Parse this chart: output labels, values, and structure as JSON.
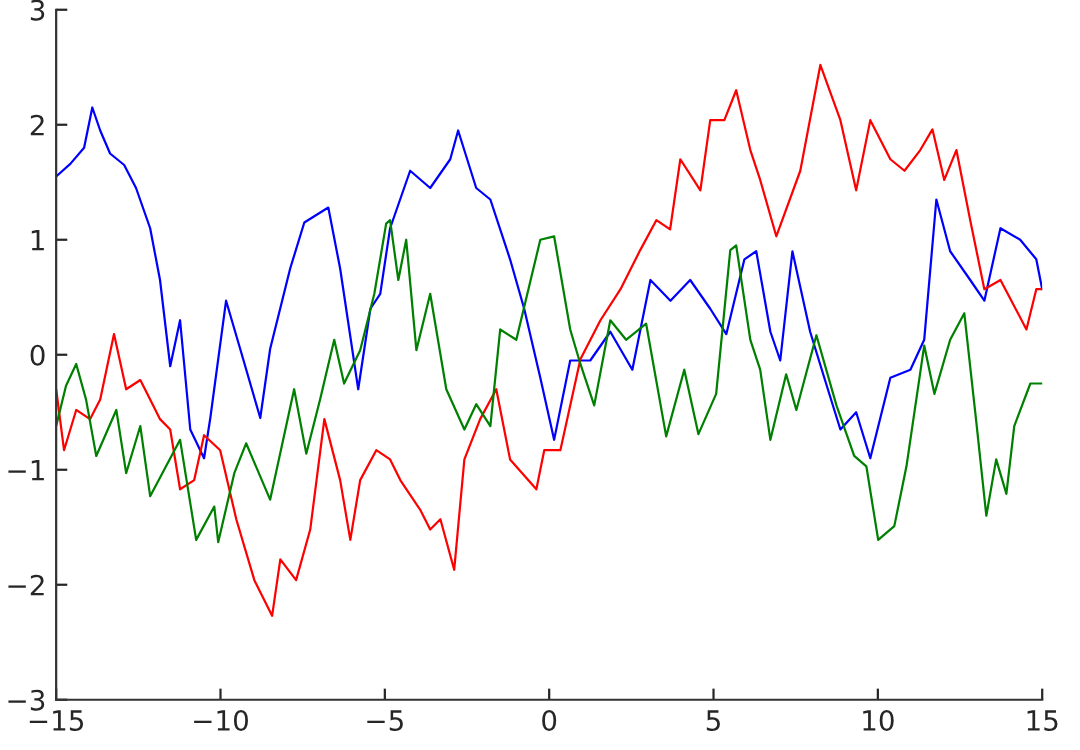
{
  "chart_data": {
    "type": "line",
    "xlim": [
      -15,
      15
    ],
    "ylim": [
      -3,
      3
    ],
    "xticks": [
      {
        "value": -15,
        "label": "−15"
      },
      {
        "value": -10,
        "label": "−10"
      },
      {
        "value": -5,
        "label": "−5"
      },
      0,
      5,
      10,
      15
    ],
    "yticks": [
      {
        "value": -3,
        "label": "−3"
      },
      {
        "value": -2,
        "label": "−2"
      },
      {
        "value": -1,
        "label": "−1"
      },
      0,
      1,
      2,
      3
    ],
    "grid": false,
    "legend": false,
    "marker": "none",
    "line_style": "solid",
    "series": [
      {
        "color": "#0000ff",
        "x": [
          -15,
          -14.57,
          -14.15,
          -13.9,
          -13.66,
          -13.36,
          -12.93,
          -12.57,
          -12.14,
          -11.84,
          -11.53,
          -11.23,
          -10.92,
          -10.5,
          -10.31,
          -9.83,
          -9.4,
          -8.79,
          -8.49,
          -7.88,
          -7.45,
          -6.72,
          -6.36,
          -5.81,
          -5.44,
          -5.14,
          -4.84,
          -4.23,
          -3.62,
          -3.01,
          -2.77,
          -2.22,
          -1.79,
          -1.19,
          -0.76,
          -0.27,
          0.15,
          0.64,
          1.25,
          1.86,
          2.53,
          3.08,
          3.69,
          4.29,
          4.9,
          5.39,
          5.94,
          6.3,
          6.73,
          7.03,
          7.4,
          7.94,
          8.37,
          8.86,
          9.34,
          9.77,
          10.38,
          10.99,
          11.41,
          11.78,
          12.2,
          12.81,
          13.24,
          13.73,
          14.33,
          14.82,
          15
        ],
        "values": [
          1.55,
          1.66,
          1.8,
          2.15,
          1.95,
          1.75,
          1.65,
          1.45,
          1.1,
          0.65,
          -0.1,
          0.3,
          -0.65,
          -0.9,
          -0.55,
          0.47,
          0.05,
          -0.55,
          0.05,
          0.75,
          1.15,
          1.28,
          0.75,
          -0.3,
          0.4,
          0.53,
          1.1,
          1.6,
          1.45,
          1.7,
          1.95,
          1.45,
          1.35,
          0.83,
          0.4,
          -0.2,
          -0.74,
          -0.05,
          -0.05,
          0.2,
          -0.13,
          0.65,
          0.47,
          0.65,
          0.4,
          0.18,
          0.83,
          0.9,
          0.2,
          -0.05,
          0.9,
          0.2,
          -0.2,
          -0.65,
          -0.5,
          -0.9,
          -0.2,
          -0.13,
          0.13,
          1.35,
          0.9,
          0.65,
          0.47,
          1.1,
          1.0,
          0.83,
          0.57
        ]
      },
      {
        "color": "#ff0000",
        "x": [
          -15,
          -14.76,
          -14.39,
          -13.97,
          -13.66,
          -13.24,
          -12.87,
          -12.44,
          -12.14,
          -11.84,
          -11.53,
          -11.23,
          -10.8,
          -10.5,
          -10.01,
          -9.52,
          -8.97,
          -8.43,
          -8.18,
          -7.7,
          -7.27,
          -6.84,
          -6.36,
          -6.05,
          -5.75,
          -5.26,
          -4.84,
          -4.53,
          -3.92,
          -3.62,
          -3.31,
          -2.89,
          -2.58,
          -2.1,
          -1.61,
          -1.19,
          -0.39,
          -0.15,
          0.34,
          0.95,
          1.56,
          2.17,
          2.77,
          3.26,
          3.68,
          3.99,
          4.6,
          4.9,
          5.33,
          5.69,
          6.12,
          6.42,
          6.91,
          7.64,
          8.25,
          8.86,
          9.34,
          9.77,
          10.38,
          10.81,
          11.29,
          11.66,
          12.02,
          12.39,
          12.81,
          13.24,
          13.73,
          14.21,
          14.52,
          14.82,
          15
        ],
        "values": [
          -0.3,
          -0.83,
          -0.48,
          -0.56,
          -0.39,
          0.18,
          -0.3,
          -0.22,
          -0.39,
          -0.56,
          -0.65,
          -1.17,
          -1.09,
          -0.7,
          -0.83,
          -1.43,
          -1.96,
          -2.27,
          -1.78,
          -1.96,
          -1.52,
          -0.56,
          -1.09,
          -1.61,
          -1.09,
          -0.83,
          -0.91,
          -1.09,
          -1.35,
          -1.52,
          -1.43,
          -1.87,
          -0.91,
          -0.56,
          -0.3,
          -0.91,
          -1.17,
          -0.83,
          -0.83,
          -0.04,
          0.3,
          0.57,
          0.91,
          1.17,
          1.09,
          1.7,
          1.43,
          2.04,
          2.04,
          2.3,
          1.78,
          1.52,
          1.03,
          1.6,
          2.52,
          2.04,
          1.43,
          2.04,
          1.7,
          1.6,
          1.78,
          1.96,
          1.52,
          1.78,
          1.17,
          0.57,
          0.65,
          0.39,
          0.22,
          0.57,
          0.57
        ]
      },
      {
        "color": "#008000",
        "x": [
          -15,
          -14.7,
          -14.39,
          -14.09,
          -13.78,
          -13.17,
          -12.87,
          -12.44,
          -12.14,
          -11.23,
          -10.74,
          -10.19,
          -10.07,
          -9.58,
          -9.22,
          -8.49,
          -7.76,
          -7.39,
          -6.97,
          -6.54,
          -6.24,
          -5.75,
          -5.32,
          -4.96,
          -4.84,
          -4.59,
          -4.35,
          -4.04,
          -3.62,
          -3.13,
          -2.58,
          -2.22,
          -1.79,
          -1.49,
          -1.0,
          -0.27,
          0.15,
          0.64,
          0.95,
          1.37,
          1.86,
          2.34,
          2.95,
          3.56,
          4.11,
          4.54,
          5.08,
          5.51,
          5.69,
          6.12,
          6.42,
          6.73,
          7.21,
          7.52,
          8.13,
          8.74,
          9.28,
          9.65,
          10.01,
          10.5,
          10.87,
          11.41,
          11.72,
          12.2,
          12.63,
          12.99,
          13.3,
          13.6,
          13.91,
          14.15,
          14.64,
          15
        ],
        "values": [
          -0.62,
          -0.27,
          -0.08,
          -0.39,
          -0.88,
          -0.48,
          -1.03,
          -0.62,
          -1.23,
          -0.74,
          -1.61,
          -1.32,
          -1.63,
          -1.03,
          -0.77,
          -1.26,
          -0.3,
          -0.86,
          -0.39,
          0.13,
          -0.25,
          0.04,
          0.53,
          1.14,
          1.17,
          0.65,
          1.0,
          0.04,
          0.53,
          -0.3,
          -0.65,
          -0.43,
          -0.62,
          0.22,
          0.13,
          1.0,
          1.03,
          0.22,
          -0.08,
          -0.44,
          0.3,
          0.13,
          0.27,
          -0.71,
          -0.13,
          -0.69,
          -0.34,
          0.91,
          0.95,
          0.13,
          -0.13,
          -0.74,
          -0.17,
          -0.48,
          0.17,
          -0.44,
          -0.88,
          -0.97,
          -1.61,
          -1.49,
          -0.97,
          0.08,
          -0.34,
          0.13,
          0.36,
          -0.57,
          -1.4,
          -0.91,
          -1.21,
          -0.62,
          -0.25,
          -0.25
        ]
      }
    ]
  }
}
